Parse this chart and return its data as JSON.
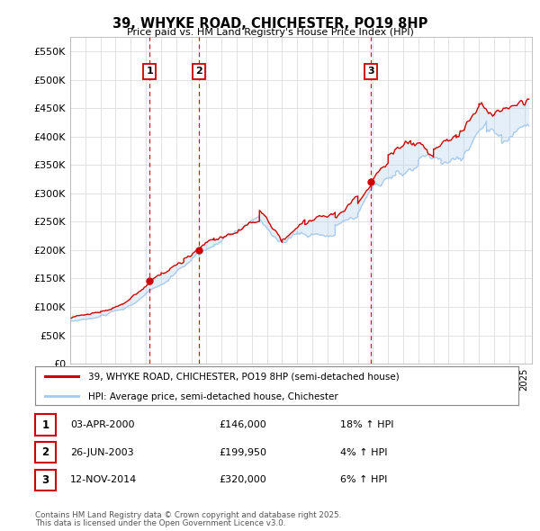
{
  "title": "39, WHYKE ROAD, CHICHESTER, PO19 8HP",
  "subtitle": "Price paid vs. HM Land Registry's House Price Index (HPI)",
  "legend_line1": "39, WHYKE ROAD, CHICHESTER, PO19 8HP (semi-detached house)",
  "legend_line2": "HPI: Average price, semi-detached house, Chichester",
  "footer1": "Contains HM Land Registry data © Crown copyright and database right 2025.",
  "footer2": "This data is licensed under the Open Government Licence v3.0.",
  "sale_color": "#cc0000",
  "hpi_color": "#aaccee",
  "vline_color": "#cc0000",
  "bg_color": "#ffffff",
  "plot_bg_color": "#ffffff",
  "grid_color": "#dddddd",
  "ylim": [
    0,
    575000
  ],
  "yticks": [
    0,
    50000,
    100000,
    150000,
    200000,
    250000,
    300000,
    350000,
    400000,
    450000,
    500000,
    550000
  ],
  "ytick_labels": [
    "£0",
    "£50K",
    "£100K",
    "£150K",
    "£200K",
    "£250K",
    "£300K",
    "£350K",
    "£400K",
    "£450K",
    "£500K",
    "£550K"
  ],
  "sales": [
    {
      "date_num": 2000.25,
      "price": 146000,
      "label": "1",
      "pct": "18%"
    },
    {
      "date_num": 2003.49,
      "price": 199950,
      "label": "2",
      "pct": "4%"
    },
    {
      "date_num": 2014.87,
      "price": 320000,
      "label": "3",
      "pct": "6%"
    }
  ],
  "sale_table": [
    {
      "num": "1",
      "date": "03-APR-2000",
      "price": "£146,000",
      "pct": "18% ↑ HPI"
    },
    {
      "num": "2",
      "date": "26-JUN-2003",
      "price": "£199,950",
      "pct": "4% ↑ HPI"
    },
    {
      "num": "3",
      "date": "12-NOV-2014",
      "price": "£320,000",
      "pct": "6% ↑ HPI"
    }
  ],
  "xmin": 1995.0,
  "xmax": 2025.5
}
